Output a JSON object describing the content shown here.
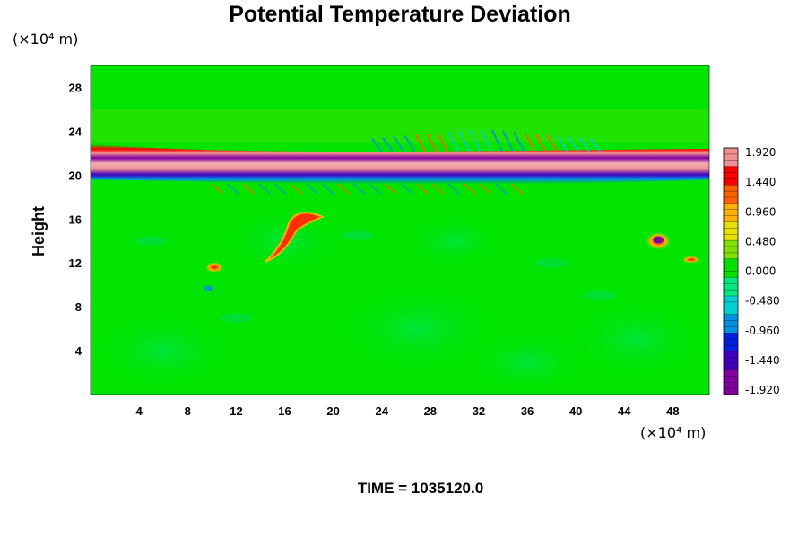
{
  "chart_data": {
    "type": "heatmap",
    "title": "Potential Temperature Deviation",
    "ylabel": "Height",
    "x_unit": "(×10⁴ m)",
    "y_unit": "(×10⁴ m)",
    "xlim": [
      0,
      51
    ],
    "ylim": [
      0,
      30
    ],
    "x_ticks": [
      4,
      8,
      12,
      16,
      20,
      24,
      28,
      32,
      36,
      40,
      44,
      48
    ],
    "y_ticks": [
      4,
      8,
      12,
      16,
      20,
      24,
      28
    ],
    "colorbar": {
      "min": -1.92,
      "max": 1.92,
      "labels": [
        "1.920",
        "1.440",
        "0.960",
        "0.480",
        "0.000",
        "-0.480",
        "-0.960",
        "-1.440",
        "-1.920"
      ],
      "colors": [
        "#f09090",
        "#ff0000",
        "#ff6000",
        "#ffb000",
        "#e8e000",
        "#80e000",
        "#00e000",
        "#00e880",
        "#00d0d0",
        "#0090e0",
        "#0020e0",
        "#4000c0",
        "#8000a0"
      ]
    },
    "background_value": 0.0,
    "features": [
      {
        "description_value": "band",
        "x_range": [
          0,
          51
        ],
        "y_center": 20.6,
        "values": {
          "center": 1.92,
          "edges": -1.92
        }
      },
      {
        "description_value": "plume",
        "x": 17.5,
        "y": 16.5,
        "value": 1.4
      },
      {
        "description_value": "plume",
        "x": 47,
        "y": 13.5,
        "value": 1.4
      },
      {
        "description_value": "blob",
        "x": 10.2,
        "y": 11.6,
        "value": 1.0
      }
    ]
  },
  "footer": {
    "time_label": "TIME = 1035120.0"
  }
}
